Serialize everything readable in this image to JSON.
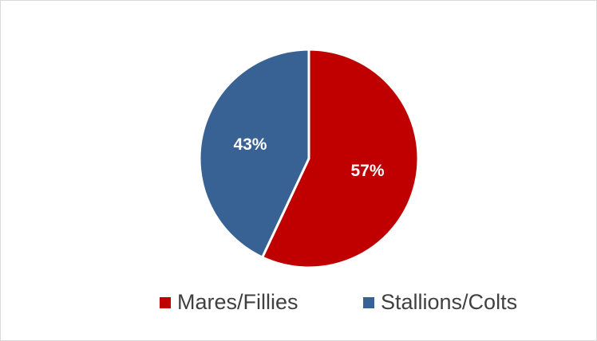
{
  "chart_data": {
    "type": "pie",
    "categories": [
      "Mares/Fillies",
      "Stallions/Colts"
    ],
    "values": [
      57,
      43
    ],
    "value_labels": [
      "57%",
      "43%"
    ],
    "colors": [
      "#c00000",
      "#386293"
    ],
    "legend": "bottom"
  }
}
